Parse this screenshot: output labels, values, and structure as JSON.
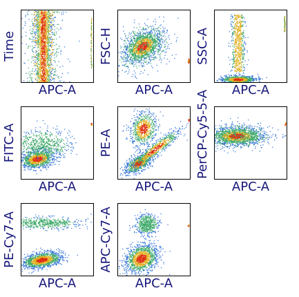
{
  "chart_data": [
    {
      "type": "scatter",
      "xlabel": "APC-A",
      "ylabel": "Time",
      "id": "time"
    },
    {
      "type": "scatter",
      "xlabel": "APC-A",
      "ylabel": "FSC-H",
      "id": "fsch"
    },
    {
      "type": "scatter",
      "xlabel": "APC-A",
      "ylabel": "SSC-A",
      "id": "ssca"
    },
    {
      "type": "scatter",
      "xlabel": "APC-A",
      "ylabel": "FITC-A",
      "id": "fitc"
    },
    {
      "type": "scatter",
      "xlabel": "APC-A",
      "ylabel": "PE-A",
      "id": "pea"
    },
    {
      "type": "scatter",
      "xlabel": "APC-A",
      "ylabel": "PerCP-Cy5-5-A",
      "id": "percp"
    },
    {
      "type": "scatter",
      "xlabel": "APC-A",
      "ylabel": "PE-Cy7-A",
      "id": "pecy7"
    },
    {
      "type": "scatter",
      "xlabel": "APC-A",
      "ylabel": "APC-Cy7-A",
      "id": "apccy7"
    }
  ],
  "colors": {
    "low": "#2b6fd6",
    "mid": "#3fa96b",
    "high": "#e0b020",
    "peak": "#e03010",
    "label": "#15157a"
  }
}
